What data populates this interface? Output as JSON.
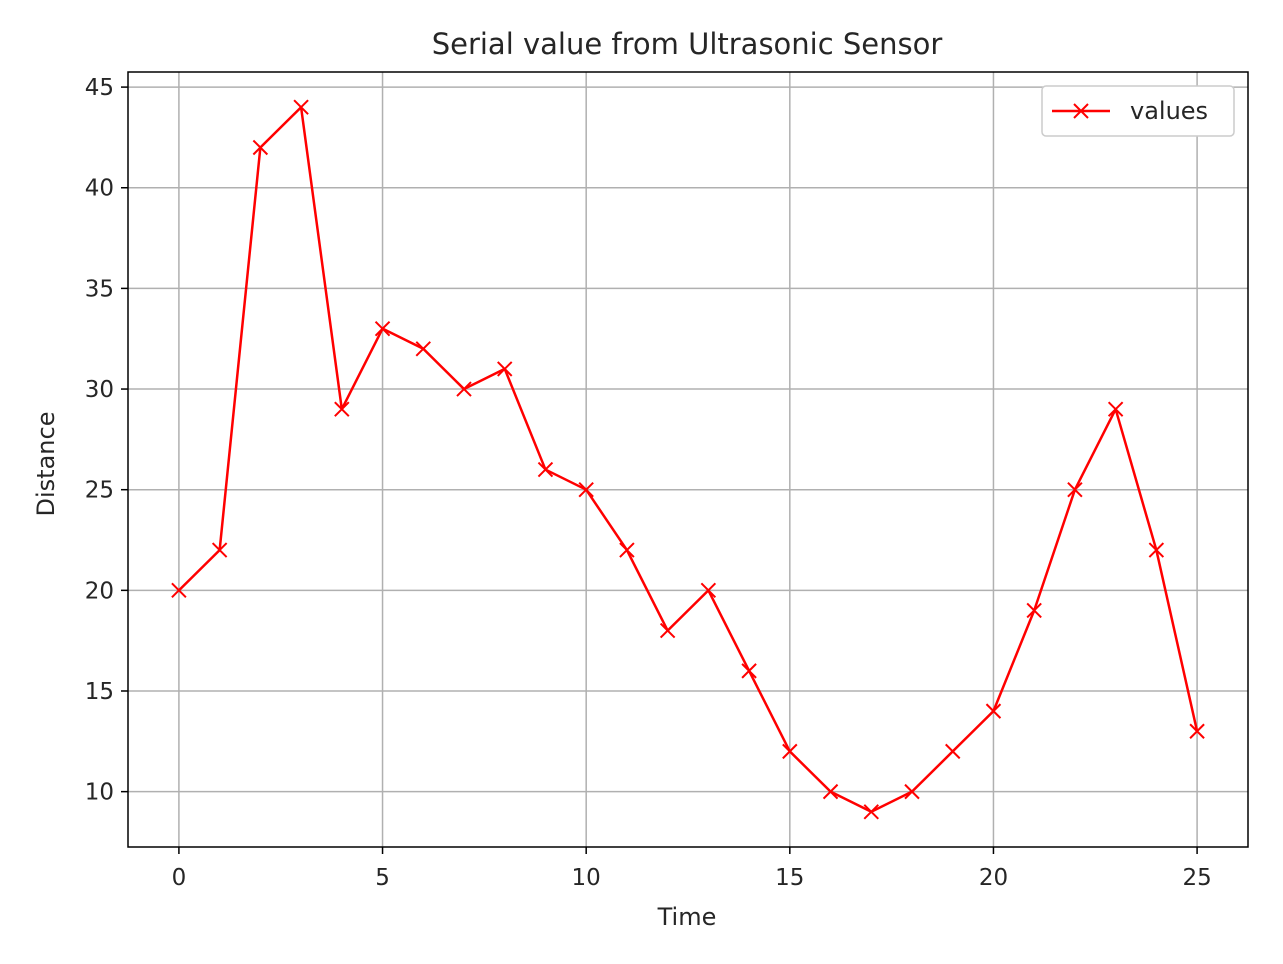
{
  "chart_data": {
    "type": "line",
    "title": "Serial value from Ultrasonic Sensor",
    "xlabel": "Time",
    "ylabel": "Distance",
    "x": [
      0,
      1,
      2,
      3,
      4,
      5,
      6,
      7,
      8,
      9,
      10,
      11,
      12,
      13,
      14,
      15,
      16,
      17,
      18,
      19,
      20,
      21,
      22,
      23,
      24,
      25
    ],
    "series": [
      {
        "name": "values",
        "color": "#ff0000",
        "marker": "x",
        "values": [
          20,
          22,
          42,
          44,
          29,
          33,
          32,
          30,
          31,
          26,
          25,
          22,
          18,
          20,
          16,
          12,
          10,
          9,
          10,
          12,
          14,
          19,
          25,
          29,
          22,
          13
        ]
      }
    ],
    "xlim": [
      -1.25,
      26.25
    ],
    "ylim": [
      7.25,
      45.75
    ],
    "xticks": [
      0,
      5,
      10,
      15,
      20,
      25
    ],
    "yticks": [
      10,
      15,
      20,
      25,
      30,
      35,
      40,
      45
    ],
    "grid": true,
    "legend": "top-right"
  }
}
